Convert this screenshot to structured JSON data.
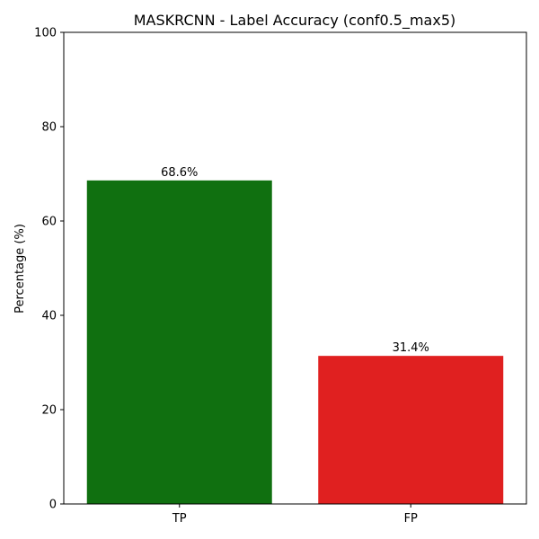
{
  "chart_data": {
    "type": "bar",
    "title": "MASKRCNN - Label Accuracy (conf0.5_max5)",
    "xlabel": "",
    "ylabel": "Percentage (%)",
    "categories": [
      "TP",
      "FP"
    ],
    "values": [
      68.6,
      31.4
    ],
    "value_labels": [
      "68.6%",
      "31.4%"
    ],
    "bar_colors": [
      "#107010",
      "#e02020"
    ],
    "ylim": [
      0,
      100
    ],
    "yticks": [
      0,
      20,
      40,
      60,
      80,
      100
    ],
    "ytick_labels": [
      "0",
      "20",
      "40",
      "60",
      "80",
      "100"
    ],
    "grid": false,
    "legend": false
  }
}
